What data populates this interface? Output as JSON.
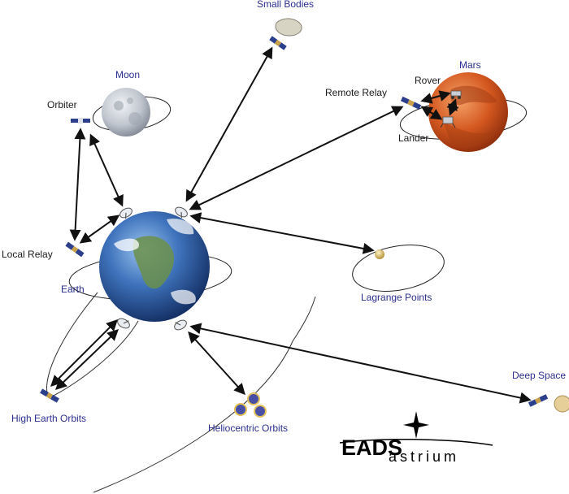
{
  "labels": {
    "small_bodies": "Small Bodies",
    "moon": "Moon",
    "orbiter": "Orbiter",
    "mars": "Mars",
    "rover": "Rover",
    "remote_relay": "Remote Relay",
    "lander": "Lander",
    "local_relay": "Local Relay",
    "earth": "Earth",
    "lagrange_points": "Lagrange Points",
    "deep_space": "Deep Space",
    "high_earth_orbits": "High Earth Orbits",
    "heliocentric_orbits": "Heliocentric Orbits"
  },
  "logo": {
    "brand": "EADS",
    "sub": "astrium"
  },
  "colors": {
    "label_blue": "#2a2f8f",
    "label_dark": "#1a1a1a",
    "earth_ocean": "#2f5fa8",
    "mars_surface": "#d4581f",
    "moon_surface": "#c9ced6"
  }
}
